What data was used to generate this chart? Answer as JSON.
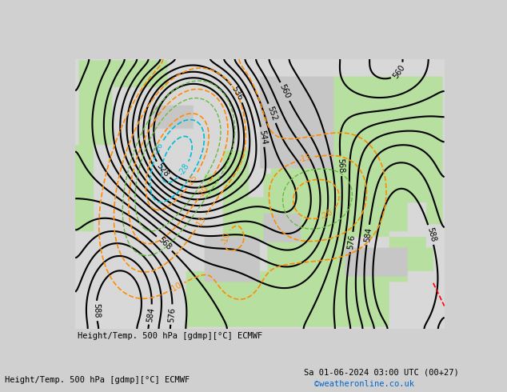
{
  "title_left": "Height/Temp. 500 hPa [gdmp][°C] ECMWF",
  "title_right": "Sa 01-06-2024 03:00 UTC (00+27)",
  "credit": "©weatheronline.co.uk",
  "background_color": "#e8e8e8",
  "green_color": "#b8e0a0",
  "green_dark_color": "#90c870",
  "contour_color": "#000000",
  "temp_warm_color": "#ff8c00",
  "temp_cold_color": "#00bcd4",
  "temp_green_color": "#66bb44",
  "land_gray": "#c8c8c8",
  "figsize": [
    6.34,
    4.9
  ],
  "dpi": 100
}
